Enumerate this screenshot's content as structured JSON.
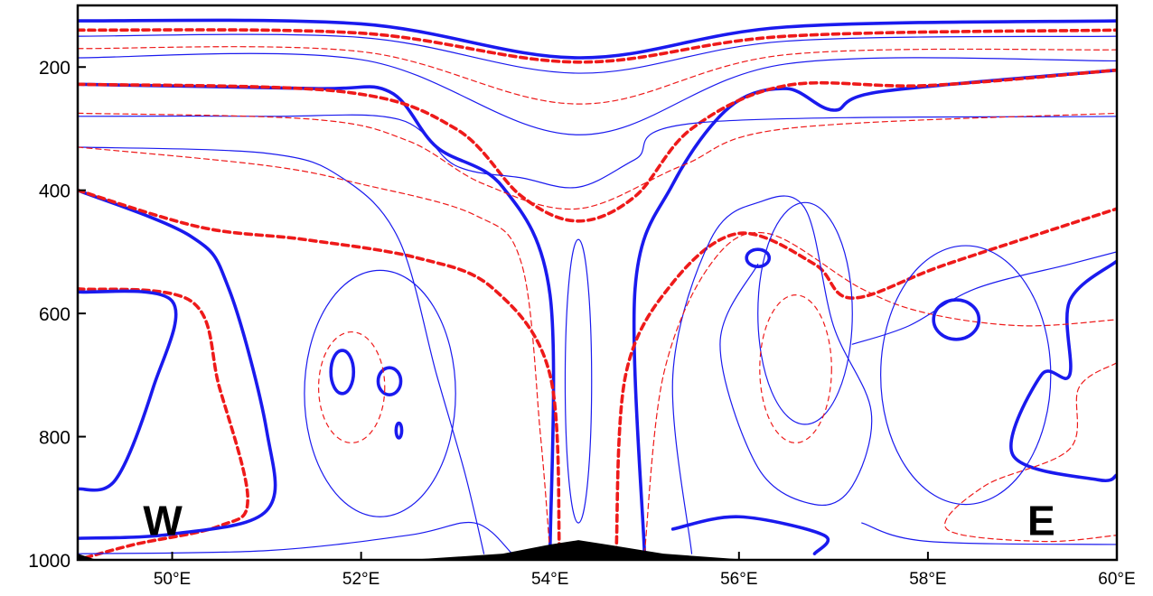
{
  "chart_data": {
    "type": "contour-cross-section",
    "title": "",
    "xlabel": "",
    "ylabel": "",
    "xlim": [
      49,
      60
    ],
    "ylim": [
      1000,
      100
    ],
    "x_ticks": [
      50,
      52,
      54,
      56,
      58,
      60
    ],
    "x_tick_labels": [
      "50°E",
      "52°E",
      "54°E",
      "56°E",
      "58°E",
      "60°E"
    ],
    "y_ticks": [
      200,
      400,
      600,
      800,
      1000
    ],
    "y_tick_labels": [
      "200",
      "400",
      "600",
      "800",
      "1000"
    ],
    "annotations": [
      {
        "text": "W",
        "x": 49.9,
        "y": 935
      },
      {
        "text": "E",
        "x": 59.2,
        "y": 935
      }
    ],
    "colors": {
      "solid": "#1a1aee",
      "dashed": "#ee1a1a",
      "terrain": "#000000"
    },
    "series": [
      {
        "style": "solid",
        "weight": "thick",
        "points": [
          [
            49,
            125
          ],
          [
            52,
            130
          ],
          [
            54.3,
            185
          ],
          [
            56.5,
            135
          ],
          [
            60,
            125
          ]
        ]
      },
      {
        "style": "dashed",
        "weight": "thick",
        "points": [
          [
            49,
            140
          ],
          [
            52,
            145
          ],
          [
            54.3,
            192
          ],
          [
            56.5,
            150
          ],
          [
            60,
            140
          ]
        ]
      },
      {
        "style": "solid",
        "weight": "thin",
        "points": [
          [
            49,
            150
          ],
          [
            52,
            152
          ],
          [
            54.3,
            210
          ],
          [
            56.5,
            158
          ],
          [
            60,
            150
          ]
        ]
      },
      {
        "style": "dashed",
        "weight": "thin",
        "points": [
          [
            49,
            170
          ],
          [
            52,
            175
          ],
          [
            54.3,
            260
          ],
          [
            56.5,
            180
          ],
          [
            60,
            172
          ]
        ]
      },
      {
        "style": "solid",
        "weight": "thin",
        "points": [
          [
            49,
            185
          ],
          [
            52,
            188
          ],
          [
            54.3,
            310
          ],
          [
            56.5,
            195
          ],
          [
            60,
            190
          ]
        ]
      },
      {
        "style": "solid",
        "weight": "thick",
        "points": [
          [
            49,
            228
          ],
          [
            51.5,
            235
          ],
          [
            52.3,
            240
          ],
          [
            52.8,
            330
          ],
          [
            53.5,
            395
          ],
          [
            54,
            570
          ],
          [
            54,
            990
          ]
        ]
      },
      {
        "style": "solid",
        "weight": "thick",
        "points": [
          [
            55,
            990
          ],
          [
            54.9,
            560
          ],
          [
            55.3,
            390
          ],
          [
            55.9,
            265
          ],
          [
            56.5,
            235
          ],
          [
            57,
            270
          ],
          [
            57.5,
            240
          ],
          [
            60,
            205
          ]
        ]
      },
      {
        "style": "dashed",
        "weight": "thick",
        "points": [
          [
            49,
            228
          ],
          [
            51.8,
            240
          ],
          [
            53,
            300
          ],
          [
            53.7,
            410
          ],
          [
            54.3,
            450
          ],
          [
            54.9,
            410
          ],
          [
            55.5,
            300
          ],
          [
            56.5,
            230
          ],
          [
            58,
            230
          ],
          [
            60,
            205
          ]
        ]
      },
      {
        "style": "solid",
        "weight": "thin",
        "points": [
          [
            49,
            280
          ],
          [
            51,
            280
          ],
          [
            52.4,
            285
          ],
          [
            53,
            360
          ],
          [
            53.7,
            380
          ],
          [
            54.3,
            395
          ],
          [
            54.9,
            350
          ],
          [
            55.6,
            290
          ],
          [
            60,
            280
          ]
        ]
      },
      {
        "style": "dashed",
        "weight": "thin",
        "points": [
          [
            49,
            275
          ],
          [
            51.5,
            285
          ],
          [
            52.5,
            320
          ],
          [
            53.3,
            390
          ],
          [
            54.3,
            430
          ],
          [
            55.4,
            360
          ],
          [
            56.5,
            300
          ],
          [
            60,
            275
          ]
        ]
      },
      {
        "style": "dashed",
        "weight": "thick",
        "points": [
          [
            49,
            560
          ],
          [
            50.2,
            580
          ],
          [
            50.5,
            720
          ],
          [
            50.8,
            900
          ],
          [
            50.5,
            945
          ],
          [
            49.6,
            975
          ],
          [
            49,
            1000
          ]
        ]
      },
      {
        "style": "solid",
        "weight": "thick",
        "points": [
          [
            49,
            565
          ],
          [
            50,
            580
          ],
          [
            49.8,
            720
          ],
          [
            49.4,
            870
          ],
          [
            49,
            885
          ]
        ]
      },
      {
        "style": "solid",
        "weight": "thick",
        "points": [
          [
            49,
            400
          ],
          [
            50.2,
            475
          ],
          [
            50.6,
            560
          ],
          [
            51,
            790
          ],
          [
            51,
            920
          ],
          [
            50,
            958
          ],
          [
            49,
            965
          ]
        ]
      },
      {
        "style": "dashed",
        "weight": "thick",
        "points": [
          [
            49,
            400
          ],
          [
            50.3,
            460
          ],
          [
            51.4,
            480
          ],
          [
            52.6,
            510
          ],
          [
            53.4,
            560
          ],
          [
            54,
            700
          ],
          [
            54.1,
            990
          ]
        ]
      },
      {
        "style": "dashed",
        "weight": "thick",
        "points": [
          [
            54.7,
            990
          ],
          [
            54.8,
            700
          ],
          [
            55.3,
            550
          ],
          [
            56,
            470
          ],
          [
            56.8,
            520
          ],
          [
            57.2,
            575
          ],
          [
            58.2,
            520
          ],
          [
            60,
            430
          ]
        ]
      },
      {
        "style": "solid",
        "weight": "thick",
        "points": [
          [
            60,
            515
          ],
          [
            59.5,
            580
          ],
          [
            59.5,
            700
          ],
          [
            59.2,
            700
          ],
          [
            58.9,
            830
          ],
          [
            59.8,
            870
          ],
          [
            60,
            862
          ]
        ]
      },
      {
        "style": "solid",
        "weight": "thick",
        "points": [
          [
            55.3,
            950
          ],
          [
            56,
            930
          ],
          [
            56.9,
            960
          ],
          [
            56.8,
            990
          ]
        ]
      },
      {
        "style": "solid",
        "weight": "thin",
        "points": [
          [
            49,
            330
          ],
          [
            51,
            340
          ],
          [
            51.8,
            380
          ],
          [
            52.4,
            480
          ],
          [
            52.8,
            700
          ],
          [
            53.1,
            860
          ],
          [
            53.3,
            990
          ]
        ]
      },
      {
        "style": "solid",
        "weight": "thin",
        "points": [
          [
            56.2,
            520
          ],
          [
            55.8,
            650
          ],
          [
            56.2,
            850
          ],
          [
            56.8,
            910
          ],
          [
            57.2,
            880
          ],
          [
            57.4,
            760
          ],
          [
            57,
            620
          ],
          [
            56.7,
            430
          ],
          [
            56.2,
            420
          ],
          [
            55.7,
            480
          ],
          [
            55.3,
            700
          ],
          [
            55.5,
            990
          ]
        ]
      },
      {
        "style": "solid",
        "weight": "thin",
        "points": [
          [
            57.2,
            650
          ],
          [
            57.8,
            620
          ],
          [
            58.5,
            560
          ],
          [
            59.5,
            520
          ],
          [
            60,
            500
          ]
        ]
      },
      {
        "style": "dashed",
        "weight": "thin",
        "points": [
          [
            49,
            330
          ],
          [
            51,
            360
          ],
          [
            52,
            390
          ],
          [
            53.2,
            440
          ],
          [
            53.7,
            520
          ],
          [
            53.9,
            800
          ],
          [
            54,
            990
          ]
        ]
      },
      {
        "style": "dashed",
        "weight": "thin",
        "points": [
          [
            55,
            990
          ],
          [
            55.2,
            700
          ],
          [
            55.7,
            520
          ],
          [
            56.3,
            470
          ],
          [
            57.3,
            560
          ],
          [
            58,
            600
          ],
          [
            59,
            620
          ],
          [
            60,
            610
          ]
        ]
      },
      {
        "style": "dashed",
        "weight": "thin",
        "points": [
          [
            60,
            680
          ],
          [
            59.6,
            720
          ],
          [
            59.5,
            820
          ],
          [
            58.6,
            880
          ],
          [
            58.2,
            950
          ],
          [
            59.2,
            970
          ],
          [
            60,
            960
          ]
        ]
      },
      {
        "style": "solid",
        "weight": "thin",
        "points": [
          [
            57.3,
            940
          ],
          [
            58,
            970
          ],
          [
            60,
            975
          ]
        ]
      },
      {
        "style": "solid",
        "weight": "thin",
        "points": [
          [
            49,
            990
          ],
          [
            51,
            985
          ],
          [
            52.5,
            960
          ],
          [
            53.2,
            940
          ],
          [
            53.6,
            990
          ]
        ]
      }
    ],
    "closed_contours": [
      {
        "style": "solid",
        "weight": "thick",
        "center": [
          51.8,
          695
        ],
        "radius": [
          0.12,
          35
        ]
      },
      {
        "style": "solid",
        "weight": "thick",
        "center": [
          52.3,
          710
        ],
        "radius": [
          0.12,
          22
        ]
      },
      {
        "style": "solid",
        "weight": "thick",
        "center": [
          52.4,
          790
        ],
        "radius": [
          0.03,
          12
        ]
      },
      {
        "style": "solid",
        "weight": "thick",
        "center": [
          56.2,
          510
        ],
        "radius": [
          0.12,
          14
        ]
      },
      {
        "style": "solid",
        "weight": "thick",
        "center": [
          58.3,
          610
        ],
        "radius": [
          0.24,
          32
        ]
      },
      {
        "style": "solid",
        "weight": "thin",
        "center": [
          54.3,
          710
        ],
        "radius": [
          0.14,
          230
        ]
      },
      {
        "style": "solid",
        "weight": "thin",
        "center": [
          56.7,
          600
        ],
        "radius": [
          0.5,
          180
        ]
      },
      {
        "style": "dashed",
        "weight": "thin",
        "center": [
          56.6,
          690
        ],
        "radius": [
          0.38,
          120
        ]
      },
      {
        "style": "solid",
        "weight": "thin",
        "center": [
          58.4,
          700
        ],
        "radius": [
          0.9,
          210
        ]
      },
      {
        "style": "dashed",
        "weight": "thin",
        "center": [
          51.9,
          720
        ],
        "radius": [
          0.35,
          90
        ]
      },
      {
        "style": "solid",
        "weight": "thin",
        "center": [
          52.2,
          730
        ],
        "radius": [
          0.8,
          200
        ]
      }
    ],
    "terrain": {
      "points": [
        [
          52.5,
          1000
        ],
        [
          53.5,
          990
        ],
        [
          54,
          975
        ],
        [
          54.3,
          968
        ],
        [
          54.6,
          975
        ],
        [
          55.2,
          990
        ],
        [
          56.1,
          1000
        ]
      ]
    },
    "terrain_west": {
      "points": [
        [
          49,
          990
        ],
        [
          49.2,
          1000
        ],
        [
          49,
          1000
        ]
      ]
    }
  }
}
